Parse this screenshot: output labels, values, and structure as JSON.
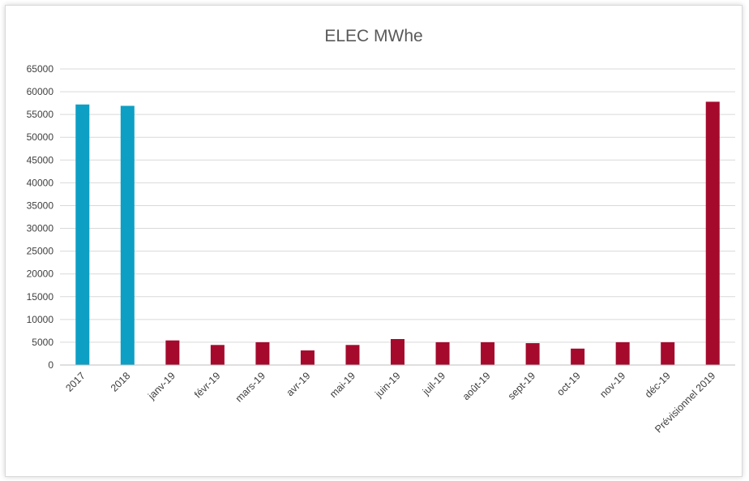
{
  "chart_data": {
    "type": "bar",
    "title": "ELEC  MWhe",
    "xlabel": "",
    "ylabel": "",
    "ylim": [
      0,
      65000
    ],
    "yticks": [
      0,
      5000,
      10000,
      15000,
      20000,
      25000,
      30000,
      35000,
      40000,
      45000,
      50000,
      55000,
      60000,
      65000
    ],
    "grid": true,
    "legend": "none",
    "categories": [
      "2017",
      "2018",
      "janv-19",
      "févr-19",
      "mars-19",
      "avr-19",
      "mai-19",
      "juin-19",
      "juil-19",
      "août-19",
      "sept-19",
      "oct-19",
      "nov-19",
      "déc-19",
      "Prévisionnel 2019"
    ],
    "values": [
      57200,
      56900,
      5400,
      4400,
      5000,
      3200,
      4400,
      5700,
      5000,
      5000,
      4800,
      3600,
      5000,
      5000,
      57800
    ],
    "colors": [
      "#0e9fc4",
      "#0e9fc4",
      "#a50a2d",
      "#a50a2d",
      "#a50a2d",
      "#a50a2d",
      "#a50a2d",
      "#a50a2d",
      "#a50a2d",
      "#a50a2d",
      "#a50a2d",
      "#a50a2d",
      "#a50a2d",
      "#a50a2d",
      "#a50a2d"
    ],
    "gridColor": "#d9d9d9"
  }
}
